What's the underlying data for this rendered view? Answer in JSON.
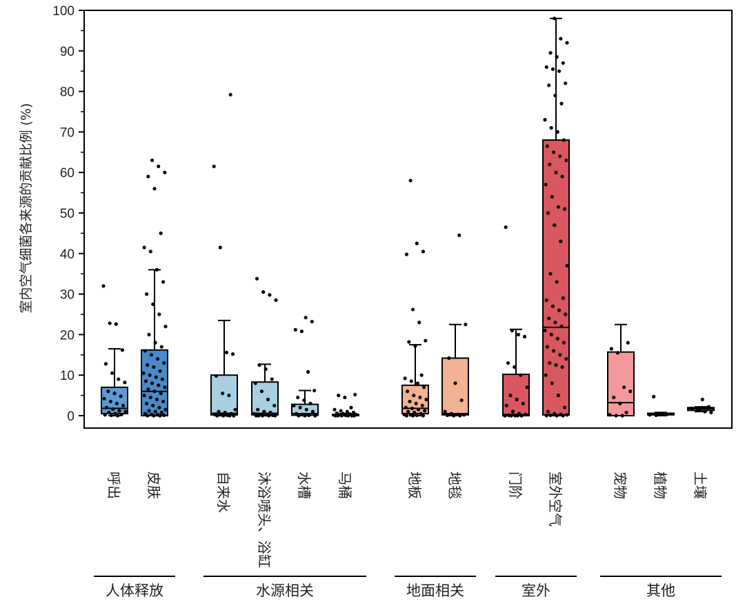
{
  "chart_data": {
    "type": "box",
    "ylabel": "室内空气细菌各来源的贡献比例 (%)",
    "ylim": [
      0,
      100
    ],
    "yticks": [
      0,
      10,
      20,
      30,
      40,
      50,
      60,
      70,
      80,
      90,
      100
    ],
    "categories": [
      {
        "label": "呼出",
        "group": "人体释放",
        "color": "#5b9bd5",
        "box": {
          "q1": 0.5,
          "median": 1.8,
          "q3": 7,
          "whisker_low": 0,
          "whisker_high": 16.5
        },
        "points": [
          32,
          22.8,
          22.6,
          16.2,
          12.8,
          10.5,
          9,
          8.2,
          6,
          5.5,
          4.8,
          4.2,
          3.5,
          3,
          2.5,
          2,
          1.6,
          1.2,
          1,
          0.8,
          0.5,
          0.3,
          0.2,
          0.1,
          0
        ]
      },
      {
        "label": "皮肤",
        "group": "人体释放",
        "color": "#4a8ac8",
        "box": {
          "q1": 0,
          "median": 6,
          "q3": 16.2,
          "whisker_low": 0,
          "whisker_high": 36
        },
        "points": [
          63,
          61.5,
          60,
          59,
          56,
          45,
          41.5,
          40.5,
          36,
          33,
          30,
          27.5,
          25,
          22,
          20,
          18,
          17,
          16,
          15,
          14,
          13,
          12.5,
          12,
          11,
          10.5,
          10,
          9.5,
          9,
          8.5,
          8,
          7.5,
          7,
          6.5,
          6,
          5.5,
          5,
          4.5,
          4,
          3.5,
          3,
          2.5,
          2,
          1.5,
          1.2,
          1,
          0.8,
          0.5,
          0.3,
          0.2,
          0.1,
          0,
          0,
          0
        ]
      },
      {
        "label": "自来水",
        "group": "水源相关",
        "color": "#a9cfe2",
        "box": {
          "q1": 0.2,
          "median": 0.6,
          "q3": 10,
          "whisker_low": 0,
          "whisker_high": 23.5
        },
        "points": [
          79.2,
          61.5,
          41.5,
          15.6,
          15.2,
          9.8,
          5.5,
          5,
          1.5,
          1,
          0.8,
          0.5,
          0.3,
          0.2,
          0.1,
          0,
          0,
          0,
          0
        ]
      },
      {
        "label": "沐浴喷头、浴缸",
        "group": "水源相关",
        "color": "#a9cfe2",
        "box": {
          "q1": 0.2,
          "median": 0.6,
          "q3": 8.3,
          "whisker_low": 0,
          "whisker_high": 12.7
        },
        "points": [
          33.8,
          30.5,
          29.8,
          28.5,
          12.5,
          11.5,
          9,
          8,
          6,
          4,
          2.5,
          1.5,
          1,
          0.8,
          0.5,
          0.3,
          0.2,
          0.1,
          0,
          0,
          0,
          0,
          0
        ]
      },
      {
        "label": "水槽",
        "group": "水源相关",
        "color": "#a9cfe2",
        "box": {
          "q1": 0.1,
          "median": 0.5,
          "q3": 2.8,
          "whisker_low": 0,
          "whisker_high": 6.2
        },
        "points": [
          24.2,
          23.2,
          21.2,
          20.8,
          10.8,
          6.2,
          4.5,
          3.8,
          3,
          2.5,
          2,
          1.5,
          1,
          0.5,
          0.3,
          0.1,
          0,
          0,
          0
        ]
      },
      {
        "label": "马桶",
        "group": "水源相关",
        "color": "#a9cfe2",
        "box": {
          "q1": 0,
          "median": 0.1,
          "q3": 0.3,
          "whisker_low": 0,
          "whisker_high": 0.5
        },
        "points": [
          5.2,
          5,
          4.5,
          2,
          1.5,
          1.2,
          1,
          0.8,
          0.6,
          0.5,
          0.4,
          0.3,
          0.2,
          0.1,
          0,
          0,
          0,
          0,
          0,
          0
        ]
      },
      {
        "label": "地板",
        "group": "地面相关",
        "color": "#f2b294",
        "box": {
          "q1": 0.5,
          "median": 1.8,
          "q3": 7.5,
          "whisker_low": 0,
          "whisker_high": 17.5
        },
        "points": [
          58,
          42.5,
          40.5,
          39.8,
          26.2,
          23,
          18.5,
          18.2,
          17.2,
          10,
          9.2,
          8.5,
          8,
          7,
          6,
          5,
          4.5,
          4,
          3.5,
          3,
          2.5,
          2,
          1.8,
          1.5,
          1.2,
          1,
          0.8,
          0.5,
          0.3,
          0.2,
          0.1,
          0,
          0,
          0
        ]
      },
      {
        "label": "地毯",
        "group": "地面相关",
        "color": "#f2b294",
        "box": {
          "q1": 0.2,
          "median": 0.5,
          "q3": 14.2,
          "whisker_low": 0,
          "whisker_high": 22.5
        },
        "points": [
          44.5,
          22.5,
          14.2,
          8,
          3.8,
          1,
          0.5,
          0.3,
          0.2,
          0.1,
          0,
          0
        ]
      },
      {
        "label": "门阶",
        "group": "室外",
        "color": "#d9575e",
        "box": {
          "q1": 0,
          "median": 0.3,
          "q3": 10.2,
          "whisker_low": 0,
          "whisker_high": 21.3
        },
        "points": [
          46.5,
          21,
          20,
          19.5,
          13,
          12,
          10,
          7,
          5,
          4,
          3,
          2.5,
          1,
          0.5,
          0.3,
          0.1,
          0,
          0,
          0,
          0,
          0
        ]
      },
      {
        "label": "室外空气",
        "group": "室外",
        "color": "#d9575e",
        "box": {
          "q1": 0.2,
          "median": 21.8,
          "q3": 68,
          "whisker_low": 0,
          "whisker_high": 98
        },
        "points": [
          98,
          93,
          92,
          89.5,
          88.5,
          87,
          86,
          85.5,
          85,
          82,
          81.5,
          79,
          77,
          73,
          71,
          70,
          68,
          66.5,
          65,
          64,
          63,
          62,
          60,
          59,
          57,
          54,
          51.5,
          51,
          50,
          47,
          43,
          37,
          35,
          33,
          29,
          28.5,
          27,
          26,
          25,
          24,
          23,
          22,
          21,
          20,
          19,
          18,
          17,
          16,
          15,
          14,
          13,
          12.5,
          12,
          10,
          8,
          5,
          2,
          1,
          0.5,
          0.3,
          0.2,
          0.1,
          0,
          0,
          0
        ]
      },
      {
        "label": "宠物",
        "group": "其他",
        "color": "#f3999b",
        "box": {
          "q1": 0,
          "median": 3.2,
          "q3": 15.7,
          "whisker_low": 0,
          "whisker_high": 22.5
        },
        "points": [
          18,
          16.5,
          15.5,
          7,
          6,
          4.5,
          3,
          0.8,
          0.2,
          0,
          0
        ]
      },
      {
        "label": "植物",
        "group": "其他",
        "color": "#f3999b",
        "box": {
          "q1": 0.2,
          "median": 0.5,
          "q3": 0.6,
          "whisker_low": 0,
          "whisker_high": 0.8
        },
        "points": [
          4.7,
          0.5,
          0.3,
          0.2,
          0.1
        ]
      },
      {
        "label": "土壤",
        "group": "其他",
        "color": "#f3999b",
        "box": {
          "q1": 1.3,
          "median": 1.7,
          "q3": 2,
          "whisker_low": 1,
          "whisker_high": 2.2
        },
        "points": [
          4,
          2.2,
          1.8,
          1.5,
          1,
          0.8
        ]
      }
    ],
    "groups": [
      "人体释放",
      "水源相关",
      "地面相关",
      "室外",
      "其他"
    ],
    "grid": false,
    "legend": "none"
  }
}
